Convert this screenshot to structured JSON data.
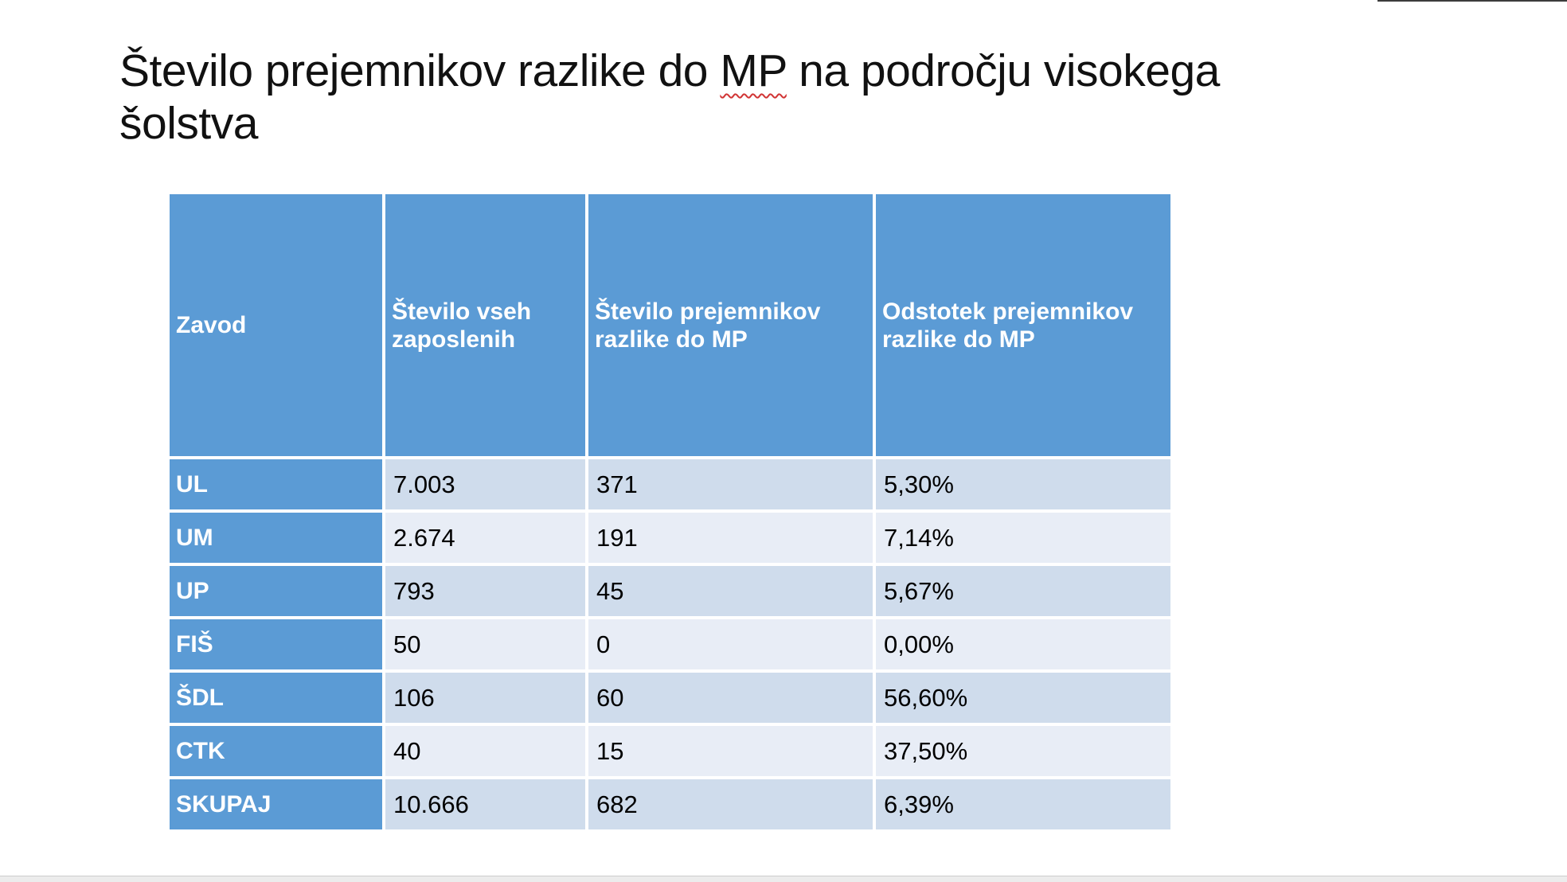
{
  "title": {
    "part1": "Število prejemnikov razlike do ",
    "misspelled": "MP",
    "part2": " na področju visokega",
    "line2": "šolstva"
  },
  "table": {
    "headers": [
      "Zavod",
      "Število vseh zaposlenih",
      "Število prejemnikov razlike do MP",
      "Odstotek prejemnikov razlike do MP"
    ],
    "rows": [
      {
        "zavod": "UL",
        "zaposleni": "7.003",
        "prejemniki": "371",
        "odstotek": "5,30%"
      },
      {
        "zavod": "UM",
        "zaposleni": "2.674",
        "prejemniki": "191",
        "odstotek": "7,14%"
      },
      {
        "zavod": "UP",
        "zaposleni": "793",
        "prejemniki": "45",
        "odstotek": "5,67%"
      },
      {
        "zavod": "FIŠ",
        "zaposleni": "50",
        "prejemniki": "0",
        "odstotek": "0,00%"
      },
      {
        "zavod": "ŠDL",
        "zaposleni": "106",
        "prejemniki": "60",
        "odstotek": "56,60%"
      },
      {
        "zavod": "CTK",
        "zaposleni": "40",
        "prejemniki": "15",
        "odstotek": "37,50%"
      },
      {
        "zavod": "SKUPAJ",
        "zaposleni": "10.666",
        "prejemniki": "682",
        "odstotek": "6,39%"
      }
    ]
  },
  "colors": {
    "accent_blue": "#5b9bd5",
    "band_dark": "#cfdcec",
    "band_light": "#e8edf6",
    "spellcheck_squiggle": "#d13434",
    "title_text": "#111111"
  }
}
